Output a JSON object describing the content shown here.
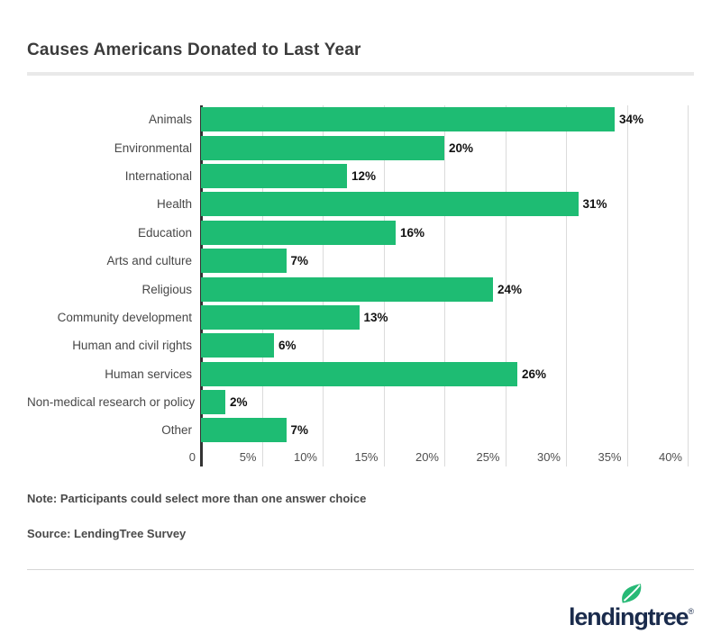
{
  "page": {
    "title": "Causes Americans Donated to Last Year"
  },
  "chart_data": {
    "type": "bar",
    "orientation": "horizontal",
    "title": "Causes Americans Donated to Last Year",
    "categories": [
      "Animals",
      "Environmental",
      "International",
      "Health",
      "Education",
      "Arts and culture",
      "Religious",
      "Community development",
      "Human and civil rights",
      "Human services",
      "Non-medical research or policy",
      "Other"
    ],
    "values": [
      34,
      20,
      12,
      31,
      16,
      7,
      24,
      13,
      6,
      26,
      2,
      7
    ],
    "value_labels": [
      "34%",
      "20%",
      "12%",
      "31%",
      "16%",
      "7%",
      "24%",
      "13%",
      "6%",
      "26%",
      "2%",
      "7%"
    ],
    "xlabel": "",
    "ylabel": "",
    "xlim": [
      0,
      40
    ],
    "x_ticks": [
      {
        "label": "0",
        "value": 0
      },
      {
        "label": "5%",
        "value": 5
      },
      {
        "label": "10%",
        "value": 10
      },
      {
        "label": "15%",
        "value": 15
      },
      {
        "label": "20%",
        "value": 20
      },
      {
        "label": "25%",
        "value": 25
      },
      {
        "label": "30%",
        "value": 30
      },
      {
        "label": "35%",
        "value": 35
      },
      {
        "label": "40%",
        "value": 40
      }
    ],
    "grid": true,
    "legend": false,
    "bar_color": "#1ebc73",
    "axis_color": "#333333",
    "gridline_color": "#dbdbdb"
  },
  "notes": {
    "note": "Note: Participants could select more than one answer choice",
    "source": "Source: LendingTree Survey"
  },
  "footer": {
    "logo_text": "lendingtree",
    "registered_mark": "®",
    "logo_color": "#1a2b4c",
    "leaf_color": "#27b976"
  }
}
